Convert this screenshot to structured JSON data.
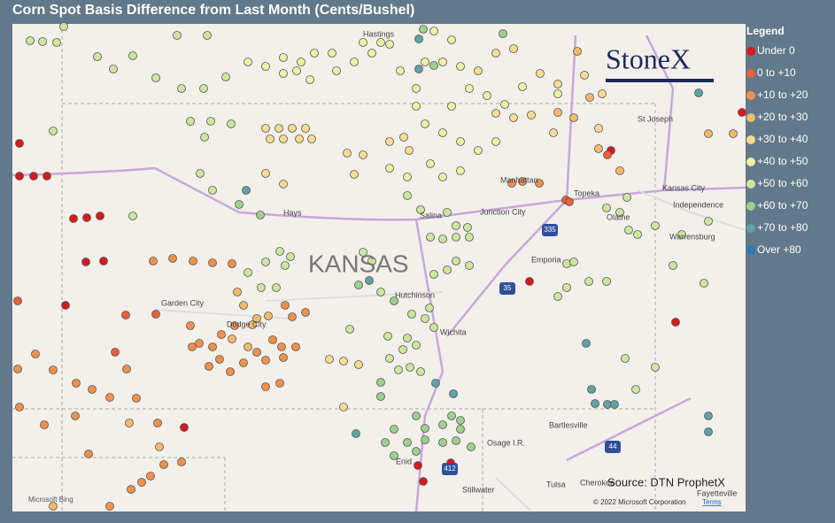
{
  "title": "Corn Spot Basis Difference from Last Month (Cents/Bushel)",
  "legend": {
    "title": "Legend",
    "items": [
      {
        "label": "Under 0",
        "color": "#d7191c"
      },
      {
        "label": "0 to +10",
        "color": "#e8603a"
      },
      {
        "label": "+10 to +20",
        "color": "#f0914b"
      },
      {
        "label": "+20 to +30",
        "color": "#f6b96b"
      },
      {
        "label": "+30 to +40",
        "color": "#f8dc90"
      },
      {
        "label": "+40 to +50",
        "color": "#eef0a6"
      },
      {
        "label": "+50 to +60",
        "color": "#cde69f"
      },
      {
        "label": "+60 to +70",
        "color": "#9dd090"
      },
      {
        "label": "+70 to +80",
        "color": "#5fa2a8"
      },
      {
        "label": "Over +80",
        "color": "#2c7bb8"
      }
    ]
  },
  "map": {
    "labels": [
      "KANSAS",
      "Hays",
      "Salina",
      "Junction City",
      "Manhattan",
      "Topeka",
      "Kansas City",
      "Independence",
      "Olathe",
      "Warrensburg",
      "Emporia",
      "Hutchinson",
      "Wichita",
      "Garden City",
      "Dodge City",
      "St Joseph",
      "Hastings",
      "Bartlesville",
      "Osage I.R.",
      "Tulsa",
      "Enid",
      "Stillwater",
      "Cherokee",
      "Fayetteville"
    ],
    "shields": [
      "335",
      "35",
      "44",
      "412"
    ]
  },
  "logo": "StoneX",
  "source": "Source: DTN ProphetX",
  "attribution": {
    "bing": "Microsoft Bing",
    "copyright": "© 2022 Microsoft Corporation",
    "terms": "Terms"
  }
}
